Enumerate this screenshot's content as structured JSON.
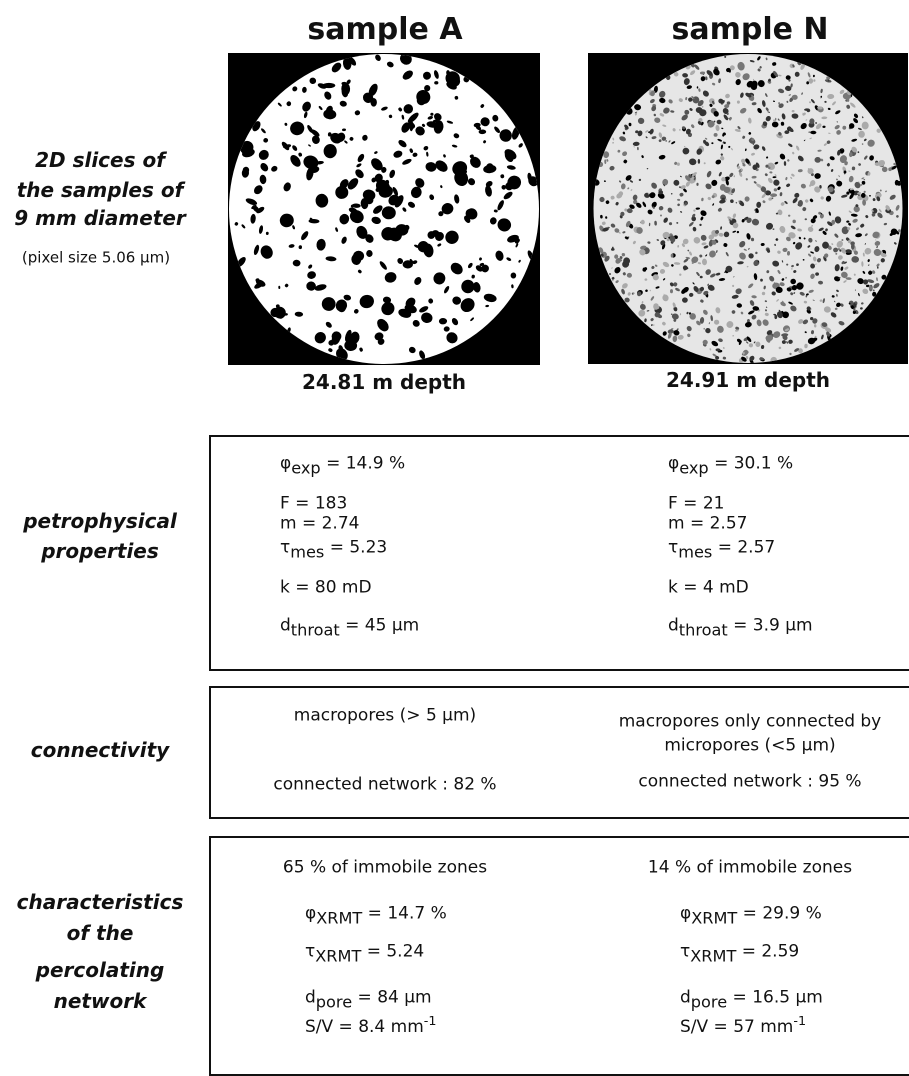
{
  "slices": {
    "label": [
      "2D slices of",
      "the samples of",
      "9 mm diameter"
    ],
    "note": "(pixel size 5.06 μm)",
    "a": {
      "title": "sample A",
      "depth": "24.81 m depth"
    },
    "n": {
      "title": "sample N",
      "depth": "24.91 m depth"
    }
  },
  "petrophysical": {
    "label": [
      "petrophysical",
      "properties"
    ],
    "a": [
      {
        "base": "φ",
        "sub": "exp",
        "tail": " = 14.9 %"
      },
      "F = 183",
      "m = 2.74",
      {
        "base": "τ",
        "sub": "mes",
        "tail": " = 5.23"
      },
      "k = 80 mD",
      {
        "base": "d",
        "sub": "throat",
        "tail": " = 45 μm"
      }
    ],
    "n": [
      {
        "base": "φ",
        "sub": "exp",
        "tail": " = 30.1 %"
      },
      "F = 21",
      "m = 2.57",
      {
        "base": "τ",
        "sub": "mes",
        "tail": " = 2.57"
      },
      "k = 4 mD",
      {
        "base": "d",
        "sub": "throat",
        "tail": " = 3.9 μm"
      }
    ]
  },
  "connectivity": {
    "label": [
      "connectivity"
    ],
    "a": [
      "macropores (> 5 μm)",
      "connected network : 82 %"
    ],
    "n": [
      "macropores only connected by",
      "micropores (<5 μm)",
      "connected network : 95 %"
    ]
  },
  "percolating": {
    "label": [
      "characteristics",
      "of the",
      "percolating",
      "network"
    ],
    "a": [
      "65 % of immobile zones",
      {
        "base": "φ",
        "sub": "XRMT",
        "tail": " = 14.7 %"
      },
      {
        "base": "τ",
        "sub": "XRMT",
        "tail": " = 5.24"
      },
      {
        "base": "d",
        "sub": "pore",
        "tail": " = 84 μm"
      },
      {
        "main": "S/V = 8.4 mm",
        "sup": "-1"
      }
    ],
    "n": [
      "14 % of immobile zones",
      {
        "base": "φ",
        "sub": "XRMT",
        "tail": " = 29.9 %"
      },
      {
        "base": "τ",
        "sub": "XRMT",
        "tail": " = 2.59"
      },
      {
        "base": "d",
        "sub": "pore",
        "tail": " = 16.5 μm"
      },
      {
        "main": "S/V = 57 mm",
        "sup": "-1"
      }
    ]
  }
}
